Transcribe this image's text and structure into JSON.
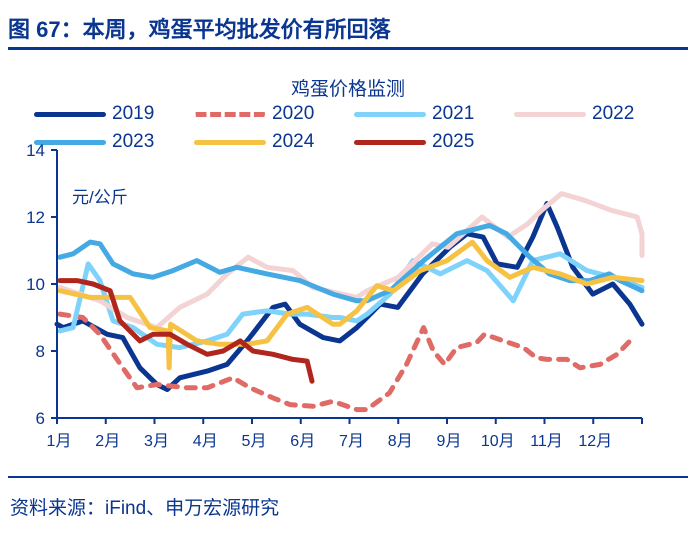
{
  "figure_title": "图 67：本周，鸡蛋平均批发价有所回落",
  "source": "资料来源：iFind、申万宏源研究",
  "chart_data": {
    "type": "line",
    "title": "鸡蛋价格监测",
    "ylabel": "元/公斤",
    "xlabel": "",
    "ylim": [
      6,
      14
    ],
    "yticks": [
      6,
      8,
      10,
      12,
      14
    ],
    "xlim": [
      1,
      13
    ],
    "xtick_labels": [
      "1月",
      "2月",
      "3月",
      "4月",
      "5月",
      "6月",
      "7月",
      "8月",
      "9月",
      "10月",
      "11月",
      "12月"
    ],
    "grid": false,
    "legend_position": "top",
    "x_unit_note": "x = month position (1 = 1月 start, 13 = year end)",
    "series": [
      {
        "name": "2019",
        "color": "#0a3590",
        "dashed": false,
        "points": [
          [
            1.0,
            8.8
          ],
          [
            1.13,
            8.7
          ],
          [
            1.53,
            8.9
          ],
          [
            2.03,
            8.5
          ],
          [
            2.35,
            8.4
          ],
          [
            2.7,
            7.5
          ],
          [
            3.05,
            7.0
          ],
          [
            3.26,
            6.85
          ],
          [
            3.52,
            7.2
          ],
          [
            4.08,
            7.4
          ],
          [
            4.49,
            7.6
          ],
          [
            4.9,
            8.3
          ],
          [
            5.43,
            9.3
          ],
          [
            5.68,
            9.4
          ],
          [
            5.98,
            8.8
          ],
          [
            6.46,
            8.4
          ],
          [
            6.8,
            8.3
          ],
          [
            7.15,
            8.7
          ],
          [
            7.63,
            9.4
          ],
          [
            7.99,
            9.3
          ],
          [
            8.5,
            10.3
          ],
          [
            9.06,
            11.1
          ],
          [
            9.41,
            11.5
          ],
          [
            9.74,
            11.4
          ],
          [
            10.03,
            10.6
          ],
          [
            10.44,
            10.5
          ],
          [
            10.76,
            11.4
          ],
          [
            11.05,
            12.4
          ],
          [
            11.26,
            11.7
          ],
          [
            11.58,
            10.5
          ],
          [
            11.99,
            9.7
          ],
          [
            12.4,
            10.0
          ],
          [
            12.75,
            9.4
          ],
          [
            13.0,
            8.8
          ]
        ]
      },
      {
        "name": "2020",
        "color": "#e06b66",
        "dashed": true,
        "points": [
          [
            1.06,
            9.1
          ],
          [
            1.53,
            9.0
          ],
          [
            1.88,
            8.5
          ],
          [
            2.35,
            7.5
          ],
          [
            2.64,
            6.9
          ],
          [
            3.05,
            7.0
          ],
          [
            3.67,
            6.9
          ],
          [
            4.08,
            6.9
          ],
          [
            4.61,
            7.2
          ],
          [
            4.96,
            6.9
          ],
          [
            5.43,
            6.6
          ],
          [
            5.78,
            6.4
          ],
          [
            6.25,
            6.35
          ],
          [
            6.66,
            6.5
          ],
          [
            7.15,
            6.25
          ],
          [
            7.35,
            6.25
          ],
          [
            7.82,
            6.75
          ],
          [
            8.17,
            7.6
          ],
          [
            8.52,
            8.7
          ],
          [
            8.72,
            8.0
          ],
          [
            8.95,
            7.6
          ],
          [
            9.2,
            8.1
          ],
          [
            9.61,
            8.25
          ],
          [
            9.77,
            8.5
          ],
          [
            10.16,
            8.3
          ],
          [
            10.57,
            8.1
          ],
          [
            10.83,
            7.8
          ],
          [
            11.05,
            7.75
          ],
          [
            11.46,
            7.75
          ],
          [
            11.73,
            7.5
          ],
          [
            12.14,
            7.6
          ],
          [
            12.49,
            7.9
          ],
          [
            12.82,
            8.4
          ]
        ]
      },
      {
        "name": "2021",
        "color": "#7fd3fb",
        "dashed": false,
        "points": [
          [
            1.06,
            8.6
          ],
          [
            1.33,
            8.7
          ],
          [
            1.64,
            10.6
          ],
          [
            1.88,
            10.1
          ],
          [
            2.15,
            8.9
          ],
          [
            2.56,
            8.7
          ],
          [
            3.05,
            8.2
          ],
          [
            3.52,
            8.1
          ],
          [
            4.08,
            8.3
          ],
          [
            4.49,
            8.5
          ],
          [
            4.81,
            9.1
          ],
          [
            5.31,
            9.2
          ],
          [
            5.78,
            9.1
          ],
          [
            6.13,
            9.1
          ],
          [
            6.66,
            9.0
          ],
          [
            6.8,
            9.0
          ],
          [
            7.15,
            8.9
          ],
          [
            7.36,
            9.1
          ],
          [
            7.83,
            9.7
          ],
          [
            8.3,
            10.7
          ],
          [
            8.86,
            10.3
          ],
          [
            9.41,
            10.7
          ],
          [
            9.82,
            10.4
          ],
          [
            10.36,
            9.5
          ],
          [
            10.76,
            10.7
          ],
          [
            11.32,
            10.9
          ],
          [
            11.87,
            10.4
          ],
          [
            12.4,
            10.2
          ],
          [
            13.0,
            9.9
          ]
        ]
      },
      {
        "name": "2022",
        "color": "#f3d3d4",
        "dashed": false,
        "points": [
          [
            1.06,
            9.9
          ],
          [
            1.88,
            9.5
          ],
          [
            2.44,
            9.0
          ],
          [
            3.05,
            8.7
          ],
          [
            3.52,
            9.3
          ],
          [
            4.08,
            9.7
          ],
          [
            4.49,
            10.3
          ],
          [
            4.92,
            10.8
          ],
          [
            5.31,
            10.5
          ],
          [
            5.84,
            10.4
          ],
          [
            6.25,
            9.9
          ],
          [
            7.15,
            9.6
          ],
          [
            7.36,
            9.8
          ],
          [
            8.0,
            10.2
          ],
          [
            8.7,
            11.2
          ],
          [
            9.02,
            11.1
          ],
          [
            9.72,
            12.0
          ],
          [
            10.25,
            11.4
          ],
          [
            10.66,
            11.8
          ],
          [
            10.94,
            12.2
          ],
          [
            11.35,
            12.7
          ],
          [
            11.82,
            12.5
          ],
          [
            12.37,
            12.2
          ],
          [
            12.9,
            12.0
          ],
          [
            13.25,
            11.5
          ],
          [
            13.0,
            10.85
          ]
        ]
      },
      {
        "name": "2023",
        "color": "#45a9e3",
        "dashed": false,
        "points": [
          [
            1.06,
            10.8
          ],
          [
            1.33,
            10.9
          ],
          [
            1.68,
            11.25
          ],
          [
            1.88,
            11.2
          ],
          [
            2.15,
            10.6
          ],
          [
            2.56,
            10.3
          ],
          [
            2.97,
            10.2
          ],
          [
            3.38,
            10.4
          ],
          [
            3.87,
            10.7
          ],
          [
            4.34,
            10.35
          ],
          [
            4.69,
            10.5
          ],
          [
            5.31,
            10.3
          ],
          [
            5.98,
            10.1
          ],
          [
            6.66,
            9.7
          ],
          [
            7.15,
            9.5
          ],
          [
            7.35,
            9.5
          ],
          [
            7.83,
            9.8
          ],
          [
            8.52,
            10.7
          ],
          [
            9.2,
            11.5
          ],
          [
            9.87,
            11.75
          ],
          [
            10.22,
            11.5
          ],
          [
            10.7,
            10.8
          ],
          [
            11.1,
            10.3
          ],
          [
            11.52,
            10.1
          ],
          [
            11.93,
            10.1
          ],
          [
            12.33,
            10.3
          ],
          [
            12.55,
            10.1
          ],
          [
            13.0,
            9.8
          ]
        ]
      },
      {
        "name": "2024",
        "color": "#f6c244",
        "dashed": false,
        "points": [
          [
            1.06,
            9.8
          ],
          [
            1.68,
            9.6
          ],
          [
            2.23,
            9.6
          ],
          [
            2.5,
            9.6
          ],
          [
            2.91,
            8.7
          ],
          [
            3.28,
            8.6
          ],
          [
            3.3,
            7.5
          ],
          [
            3.33,
            8.8
          ],
          [
            3.87,
            8.3
          ],
          [
            4.34,
            8.2
          ],
          [
            4.9,
            8.2
          ],
          [
            5.31,
            8.3
          ],
          [
            5.72,
            9.1
          ],
          [
            6.13,
            9.3
          ],
          [
            6.66,
            8.8
          ],
          [
            6.8,
            8.8
          ],
          [
            7.15,
            9.2
          ],
          [
            7.56,
            9.95
          ],
          [
            7.9,
            9.8
          ],
          [
            8.45,
            10.4
          ],
          [
            9.0,
            10.7
          ],
          [
            9.52,
            11.25
          ],
          [
            9.82,
            10.7
          ],
          [
            10.29,
            10.2
          ],
          [
            10.76,
            10.5
          ],
          [
            11.32,
            10.3
          ],
          [
            11.87,
            10.0
          ],
          [
            12.4,
            10.2
          ],
          [
            13.0,
            10.1
          ]
        ]
      },
      {
        "name": "2025",
        "color": "#b0261c",
        "dashed": false,
        "points": [
          [
            1.06,
            10.1
          ],
          [
            1.41,
            10.1
          ],
          [
            1.74,
            10.0
          ],
          [
            2.09,
            9.8
          ],
          [
            2.29,
            8.9
          ],
          [
            2.7,
            8.3
          ],
          [
            2.97,
            8.5
          ],
          [
            3.32,
            8.5
          ],
          [
            3.67,
            8.2
          ],
          [
            4.08,
            7.9
          ],
          [
            4.41,
            8.0
          ],
          [
            4.76,
            8.3
          ],
          [
            5.02,
            8.0
          ],
          [
            5.43,
            7.9
          ],
          [
            5.84,
            7.75
          ],
          [
            6.13,
            7.7
          ],
          [
            6.23,
            7.1
          ]
        ]
      }
    ]
  }
}
